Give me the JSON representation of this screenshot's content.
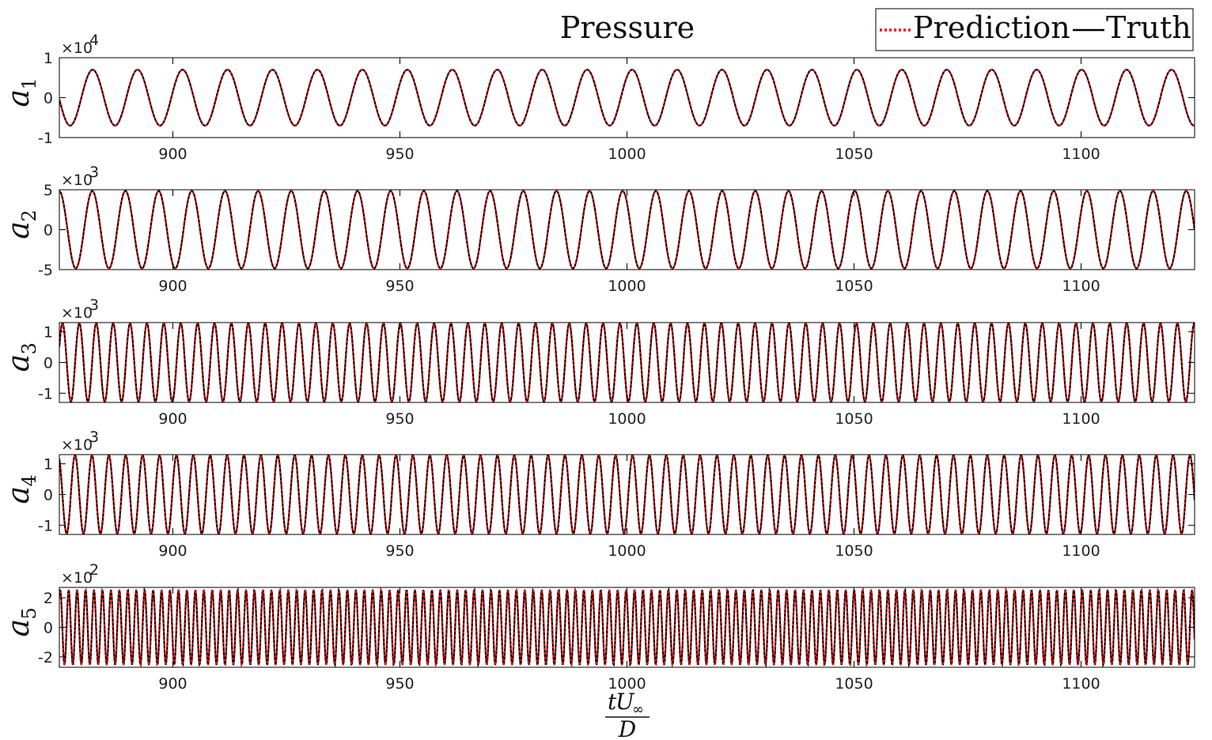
{
  "chart_data": {
    "type": "line",
    "title": "Pressure",
    "legend": {
      "entries": [
        "Prediction",
        "Truth"
      ],
      "position": "top-right"
    },
    "xlabel": {
      "num_t": "t",
      "num_U": "U",
      "num_sub": "∞",
      "den": "D"
    },
    "xlim": [
      875,
      1125
    ],
    "xticks": [
      900,
      950,
      1000,
      1050,
      1100
    ],
    "colors": {
      "prediction": "#ff0000",
      "truth": "#000000",
      "axes": "#000000"
    },
    "panels": [
      {
        "ylabel": "a",
        "ylabel_sub": "1",
        "exponent_label": "×10",
        "exponent_sup": "4",
        "ylim": [
          -1,
          1
        ],
        "yticks": [
          -1,
          0,
          1
        ],
        "ytick_labels": [
          "-1",
          "0",
          "1"
        ],
        "amplitude": 0.7,
        "period": 9.9,
        "phase": 3.2,
        "series": [
          {
            "name": "Prediction"
          },
          {
            "name": "Truth"
          }
        ]
      },
      {
        "ylabel": "a",
        "ylabel_sub": "2",
        "exponent_label": "×10",
        "exponent_sup": "3",
        "ylim": [
          -5,
          5
        ],
        "yticks": [
          -5,
          0,
          5
        ],
        "ytick_labels": [
          "-5",
          "0",
          "5"
        ],
        "amplitude": 4.85,
        "period": 7.3,
        "phase": 1.6,
        "series": [
          {
            "name": "Prediction"
          },
          {
            "name": "Truth"
          }
        ]
      },
      {
        "ylabel": "a",
        "ylabel_sub": "3",
        "exponent_label": "×10",
        "exponent_sup": "3",
        "ylim": [
          -1.3,
          1.3
        ],
        "yticks": [
          -1,
          0,
          1
        ],
        "ytick_labels": [
          "-1",
          "0",
          "1"
        ],
        "amplitude": 1.28,
        "period": 3.72,
        "phase": 0.4,
        "series": [
          {
            "name": "Prediction"
          },
          {
            "name": "Truth"
          }
        ]
      },
      {
        "ylabel": "a",
        "ylabel_sub": "4",
        "exponent_label": "×10",
        "exponent_sup": "3",
        "ylim": [
          -1.3,
          1.3
        ],
        "yticks": [
          -1,
          0,
          1
        ],
        "ytick_labels": [
          "-1",
          "0",
          "1"
        ],
        "amplitude": 1.28,
        "period": 3.72,
        "phase": 2.0,
        "series": [
          {
            "name": "Prediction"
          },
          {
            "name": "Truth"
          }
        ]
      },
      {
        "ylabel": "a",
        "ylabel_sub": "5",
        "exponent_label": "×10",
        "exponent_sup": "2",
        "ylim": [
          -2.7,
          2.7
        ],
        "yticks": [
          -2,
          0,
          2
        ],
        "ytick_labels": [
          "-2",
          "0",
          "2"
        ],
        "amplitude": 2.55,
        "period": 1.86,
        "phase": 0.9,
        "series": [
          {
            "name": "Prediction"
          },
          {
            "name": "Truth"
          }
        ]
      }
    ]
  }
}
